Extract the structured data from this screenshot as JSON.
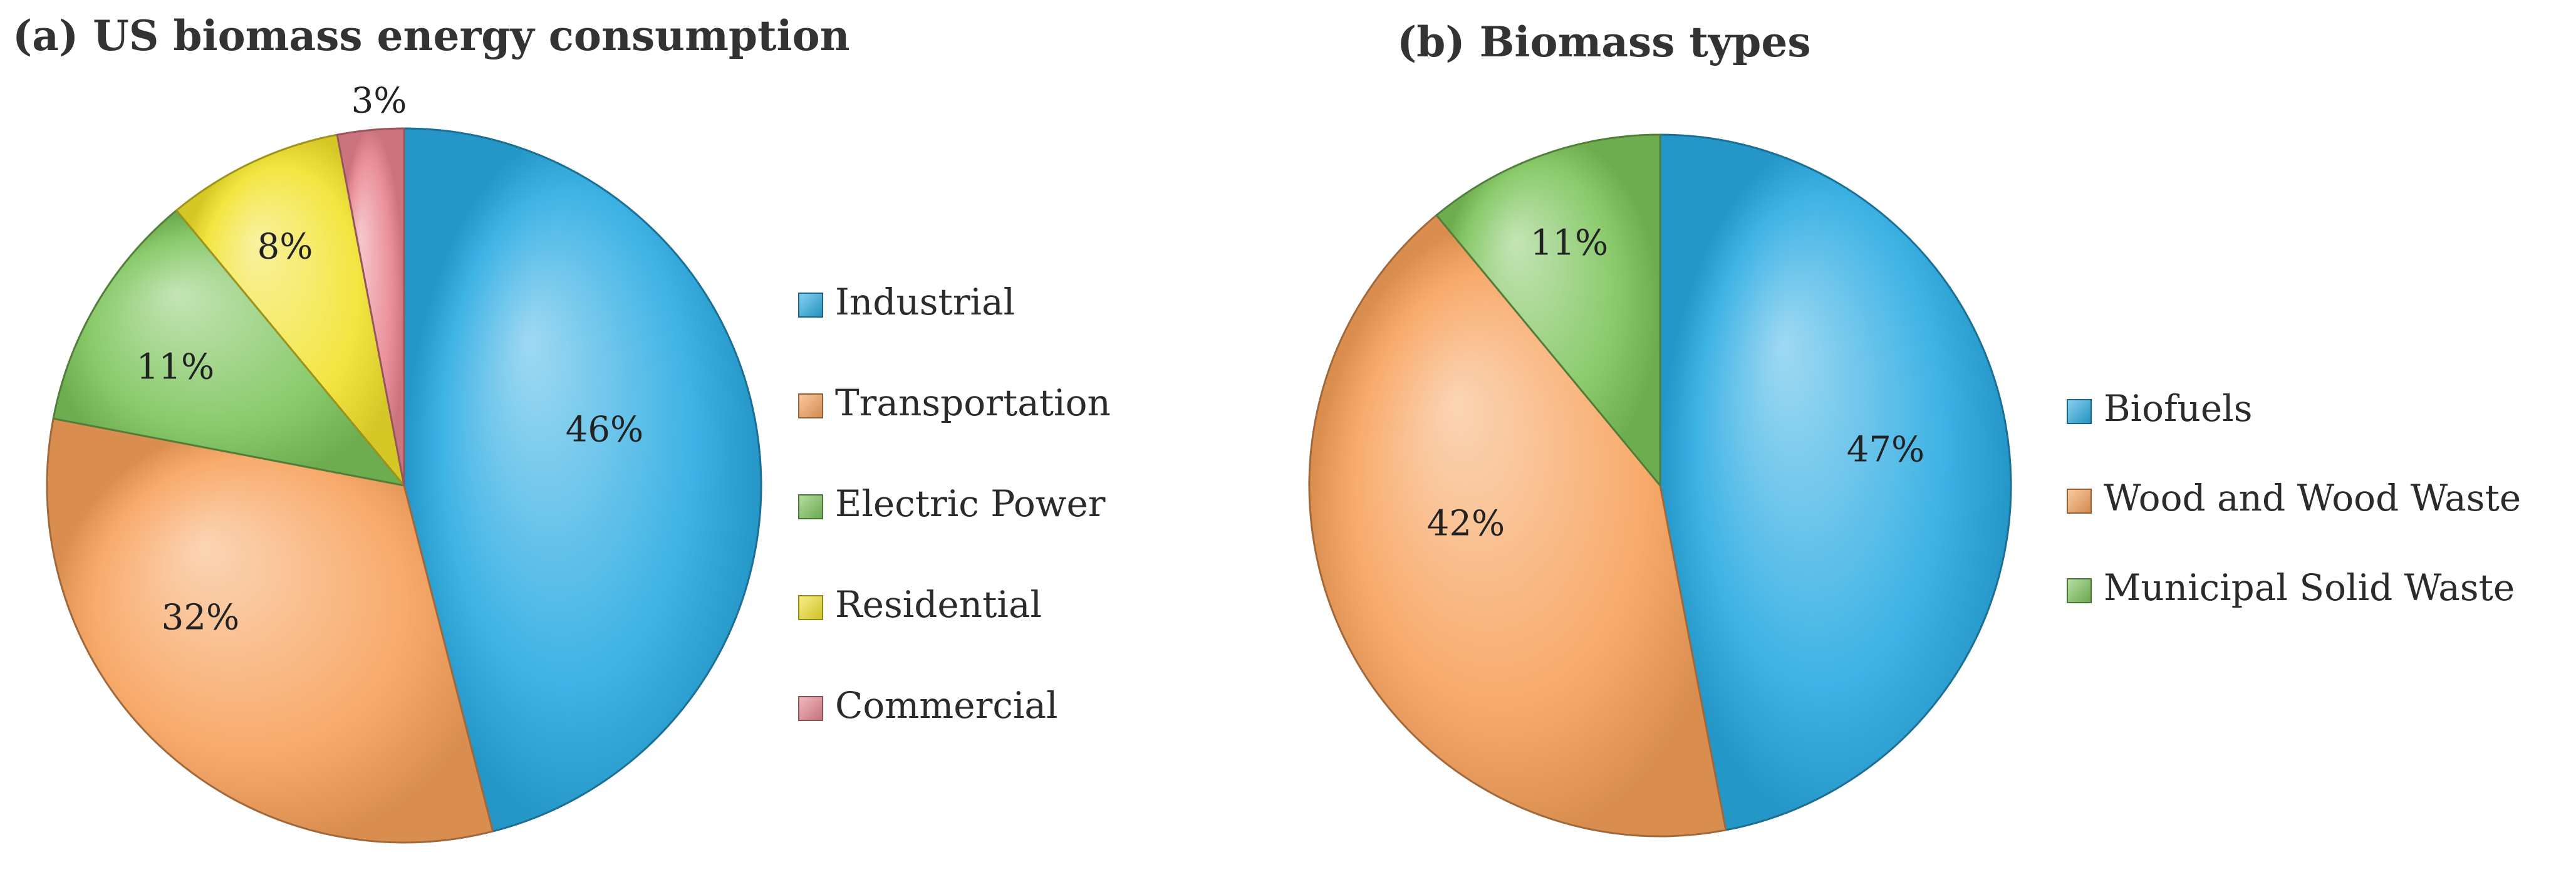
{
  "chart_data": [
    {
      "type": "pie",
      "title": "(a) US biomass energy consumption",
      "categories": [
        "Industrial",
        "Transportation",
        "Electric Power",
        "Residential",
        "Commercial"
      ],
      "values": [
        46,
        32,
        11,
        8,
        3
      ],
      "labels": [
        "46%",
        "32%",
        "11%",
        "8%",
        "3%"
      ],
      "colors": [
        "#29abe2",
        "#f7a15a",
        "#7cc45a",
        "#f2e22b",
        "#e8848f"
      ],
      "legend_position": "right"
    },
    {
      "type": "pie",
      "title": "(b) Biomass types",
      "categories": [
        "Biofuels",
        "Wood and Wood Waste",
        "Municipal Solid Waste"
      ],
      "values": [
        47,
        42,
        11
      ],
      "labels": [
        "47%",
        "42%",
        "11%"
      ],
      "colors": [
        "#29abe2",
        "#f7a15a",
        "#7cc45a"
      ],
      "legend_position": "right"
    }
  ]
}
